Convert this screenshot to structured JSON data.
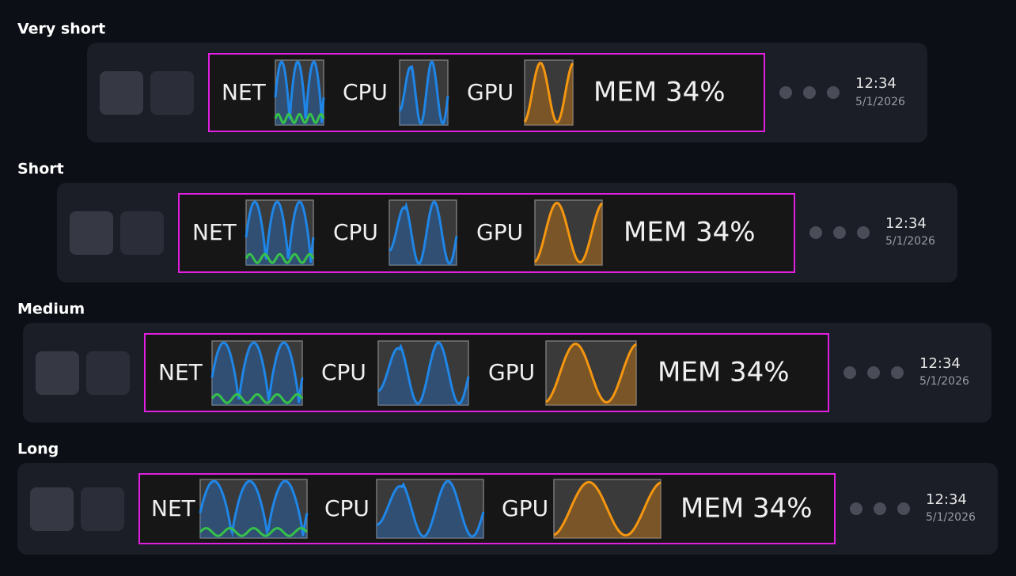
{
  "rows": [
    {
      "title": "Very short",
      "net": "NET",
      "cpu": "CPU",
      "gpu": "GPU",
      "mem": "MEM 34%",
      "time": "12:34",
      "date": "5/1/2026"
    },
    {
      "title": "Short",
      "net": "NET",
      "cpu": "CPU",
      "gpu": "GPU",
      "mem": "MEM 34%",
      "time": "12:34",
      "date": "5/1/2026"
    },
    {
      "title": "Medium",
      "net": "NET",
      "cpu": "CPU",
      "gpu": "GPU",
      "mem": "MEM 34%",
      "time": "12:34",
      "date": "5/1/2026"
    },
    {
      "title": "Long",
      "net": "NET",
      "cpu": "CPU",
      "gpu": "GPU",
      "mem": "MEM 34%",
      "time": "12:34",
      "date": "5/1/2026"
    }
  ]
}
